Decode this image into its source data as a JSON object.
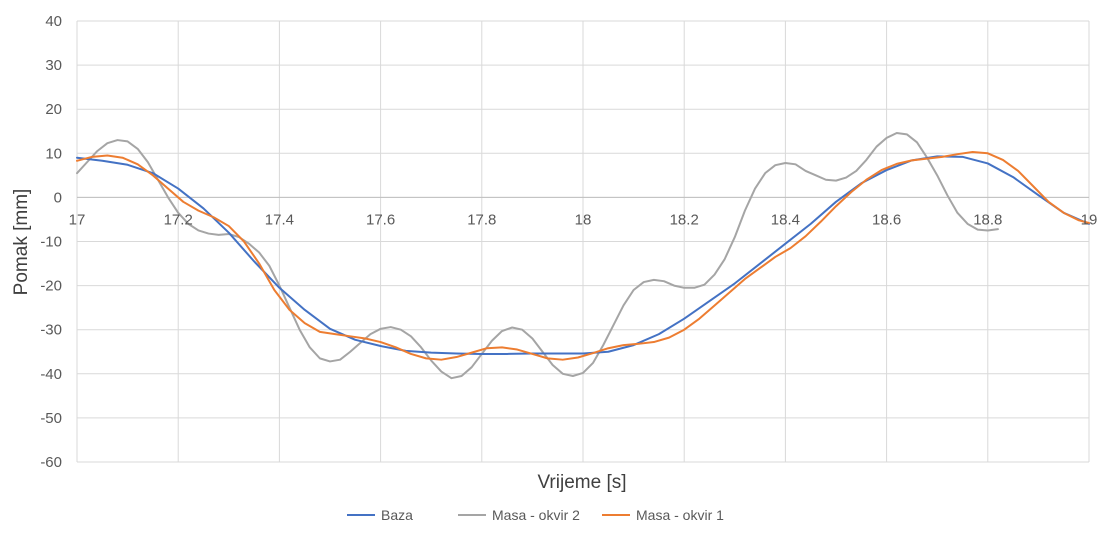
{
  "chart_data": {
    "type": "line",
    "title": "",
    "xlabel": "Vrijeme [s]",
    "ylabel": "Pomak [mm]",
    "xlim": [
      17,
      19
    ],
    "ylim": [
      -60,
      40
    ],
    "x_ticks": [
      "17",
      "17.2",
      "17.4",
      "17.6",
      "17.8",
      "18",
      "18.2",
      "18.4",
      "18.6",
      "18.8",
      "19"
    ],
    "y_ticks": [
      "40",
      "30",
      "20",
      "10",
      "0",
      "-10",
      "-20",
      "-30",
      "-40",
      "-50",
      "-60"
    ],
    "grid": true,
    "legend": "bottom",
    "series": [
      {
        "name": "Baza",
        "color": "#4472C4",
        "points": [
          [
            17.0,
            9
          ],
          [
            17.05,
            8.3
          ],
          [
            17.1,
            7.4
          ],
          [
            17.15,
            5.5
          ],
          [
            17.2,
            2
          ],
          [
            17.25,
            -2.5
          ],
          [
            17.3,
            -8
          ],
          [
            17.35,
            -14.5
          ],
          [
            17.4,
            -20.5
          ],
          [
            17.45,
            -25.5
          ],
          [
            17.5,
            -29.8
          ],
          [
            17.55,
            -32.3
          ],
          [
            17.6,
            -33.7
          ],
          [
            17.65,
            -34.8
          ],
          [
            17.7,
            -35.2
          ],
          [
            17.75,
            -35.4
          ],
          [
            17.8,
            -35.5
          ],
          [
            17.85,
            -35.5
          ],
          [
            17.9,
            -35.4
          ],
          [
            17.95,
            -35.4
          ],
          [
            18.0,
            -35.4
          ],
          [
            18.05,
            -35
          ],
          [
            18.1,
            -33.5
          ],
          [
            18.15,
            -31
          ],
          [
            18.2,
            -27.5
          ],
          [
            18.25,
            -23.5
          ],
          [
            18.3,
            -19.5
          ],
          [
            18.35,
            -15
          ],
          [
            18.4,
            -10.5
          ],
          [
            18.45,
            -6
          ],
          [
            18.5,
            -1
          ],
          [
            18.55,
            3.2
          ],
          [
            18.6,
            6.2
          ],
          [
            18.65,
            8.4
          ],
          [
            18.7,
            9.3
          ],
          [
            18.75,
            9.2
          ],
          [
            18.8,
            7.7
          ],
          [
            18.85,
            4.6
          ],
          [
            18.9,
            0.5
          ],
          [
            18.95,
            -3.5
          ],
          [
            19.0,
            -6
          ]
        ]
      },
      {
        "name": "Masa - okvir 2",
        "color": "#A5A5A5",
        "points": [
          [
            17.0,
            5.5
          ],
          [
            17.02,
            8
          ],
          [
            17.04,
            10.5
          ],
          [
            17.06,
            12.3
          ],
          [
            17.08,
            13
          ],
          [
            17.1,
            12.7
          ],
          [
            17.12,
            11
          ],
          [
            17.14,
            8
          ],
          [
            17.16,
            4
          ],
          [
            17.18,
            0
          ],
          [
            17.2,
            -3.5
          ],
          [
            17.22,
            -6
          ],
          [
            17.24,
            -7.5
          ],
          [
            17.26,
            -8.2
          ],
          [
            17.28,
            -8.5
          ],
          [
            17.3,
            -8.3
          ],
          [
            17.32,
            -9
          ],
          [
            17.34,
            -10.5
          ],
          [
            17.36,
            -12.5
          ],
          [
            17.38,
            -15.5
          ],
          [
            17.4,
            -20
          ],
          [
            17.42,
            -25
          ],
          [
            17.44,
            -30
          ],
          [
            17.46,
            -34
          ],
          [
            17.48,
            -36.5
          ],
          [
            17.5,
            -37.2
          ],
          [
            17.52,
            -36.8
          ],
          [
            17.54,
            -35
          ],
          [
            17.56,
            -33
          ],
          [
            17.58,
            -31
          ],
          [
            17.6,
            -29.8
          ],
          [
            17.62,
            -29.4
          ],
          [
            17.64,
            -30
          ],
          [
            17.66,
            -31.5
          ],
          [
            17.68,
            -34
          ],
          [
            17.7,
            -37
          ],
          [
            17.72,
            -39.5
          ],
          [
            17.74,
            -41
          ],
          [
            17.76,
            -40.5
          ],
          [
            17.78,
            -38.5
          ],
          [
            17.8,
            -35.5
          ],
          [
            17.82,
            -32.5
          ],
          [
            17.84,
            -30.3
          ],
          [
            17.86,
            -29.5
          ],
          [
            17.88,
            -30
          ],
          [
            17.9,
            -32
          ],
          [
            17.92,
            -35
          ],
          [
            17.94,
            -38
          ],
          [
            17.96,
            -40
          ],
          [
            17.98,
            -40.5
          ],
          [
            18.0,
            -39.8
          ],
          [
            18.02,
            -37.5
          ],
          [
            18.04,
            -33.5
          ],
          [
            18.06,
            -29
          ],
          [
            18.08,
            -24.5
          ],
          [
            18.1,
            -21
          ],
          [
            18.12,
            -19.2
          ],
          [
            18.14,
            -18.7
          ],
          [
            18.16,
            -19
          ],
          [
            18.18,
            -20
          ],
          [
            18.2,
            -20.5
          ],
          [
            18.22,
            -20.5
          ],
          [
            18.24,
            -19.8
          ],
          [
            18.26,
            -17.5
          ],
          [
            18.28,
            -14
          ],
          [
            18.3,
            -9
          ],
          [
            18.32,
            -3
          ],
          [
            18.34,
            2
          ],
          [
            18.36,
            5.5
          ],
          [
            18.38,
            7.3
          ],
          [
            18.4,
            7.8
          ],
          [
            18.42,
            7.5
          ],
          [
            18.44,
            6
          ],
          [
            18.46,
            5
          ],
          [
            18.48,
            4
          ],
          [
            18.5,
            3.8
          ],
          [
            18.52,
            4.5
          ],
          [
            18.54,
            6
          ],
          [
            18.56,
            8.5
          ],
          [
            18.58,
            11.5
          ],
          [
            18.6,
            13.5
          ],
          [
            18.62,
            14.6
          ],
          [
            18.64,
            14.3
          ],
          [
            18.66,
            12.5
          ],
          [
            18.68,
            9
          ],
          [
            18.7,
            5
          ],
          [
            18.72,
            0.5
          ],
          [
            18.74,
            -3.5
          ],
          [
            18.76,
            -6
          ],
          [
            18.78,
            -7.3
          ],
          [
            18.8,
            -7.5
          ],
          [
            18.82,
            -7.2
          ]
        ]
      },
      {
        "name": "Masa - okvir 1",
        "color": "#ED7D31",
        "points": [
          [
            17.0,
            8.3
          ],
          [
            17.03,
            9.2
          ],
          [
            17.06,
            9.5
          ],
          [
            17.09,
            9
          ],
          [
            17.12,
            7.5
          ],
          [
            17.15,
            5
          ],
          [
            17.18,
            2
          ],
          [
            17.21,
            -1
          ],
          [
            17.24,
            -3
          ],
          [
            17.27,
            -4.5
          ],
          [
            17.3,
            -6.5
          ],
          [
            17.33,
            -10
          ],
          [
            17.36,
            -15
          ],
          [
            17.39,
            -21
          ],
          [
            17.42,
            -25.5
          ],
          [
            17.45,
            -28.5
          ],
          [
            17.48,
            -30.5
          ],
          [
            17.51,
            -31
          ],
          [
            17.54,
            -31.5
          ],
          [
            17.57,
            -32
          ],
          [
            17.6,
            -32.8
          ],
          [
            17.63,
            -34
          ],
          [
            17.66,
            -35.5
          ],
          [
            17.69,
            -36.5
          ],
          [
            17.72,
            -36.8
          ],
          [
            17.75,
            -36.2
          ],
          [
            17.78,
            -35.2
          ],
          [
            17.81,
            -34.2
          ],
          [
            17.84,
            -34
          ],
          [
            17.87,
            -34.5
          ],
          [
            17.9,
            -35.5
          ],
          [
            17.93,
            -36.5
          ],
          [
            17.96,
            -36.8
          ],
          [
            17.99,
            -36.3
          ],
          [
            18.02,
            -35.3
          ],
          [
            18.05,
            -34.2
          ],
          [
            18.08,
            -33.5
          ],
          [
            18.11,
            -33.2
          ],
          [
            18.14,
            -32.8
          ],
          [
            18.17,
            -31.8
          ],
          [
            18.2,
            -30
          ],
          [
            18.23,
            -27.5
          ],
          [
            18.26,
            -24.5
          ],
          [
            18.29,
            -21.5
          ],
          [
            18.32,
            -18.5
          ],
          [
            18.35,
            -16
          ],
          [
            18.38,
            -13.5
          ],
          [
            18.41,
            -11.5
          ],
          [
            18.44,
            -8.8
          ],
          [
            18.47,
            -5.5
          ],
          [
            18.5,
            -2
          ],
          [
            18.53,
            1.2
          ],
          [
            18.56,
            4
          ],
          [
            18.59,
            6.2
          ],
          [
            18.62,
            7.6
          ],
          [
            18.65,
            8.4
          ],
          [
            18.68,
            8.8
          ],
          [
            18.71,
            9.2
          ],
          [
            18.74,
            9.8
          ],
          [
            18.77,
            10.3
          ],
          [
            18.8,
            10
          ],
          [
            18.83,
            8.5
          ],
          [
            18.86,
            6
          ],
          [
            18.89,
            2.5
          ],
          [
            18.92,
            -1
          ],
          [
            18.95,
            -3.5
          ],
          [
            18.98,
            -5.2
          ],
          [
            19.0,
            -5.8
          ]
        ]
      }
    ]
  }
}
